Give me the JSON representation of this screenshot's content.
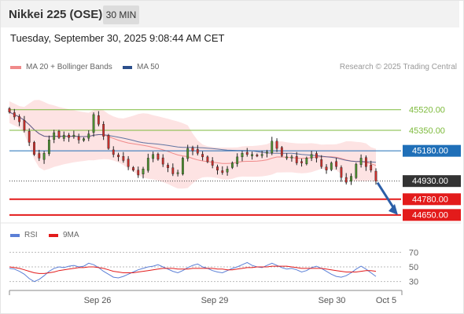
{
  "header": {
    "title": "Nikkei 225 (OSE)",
    "timeframe": "30 MIN"
  },
  "timestamp": "Tuesday, September 30, 2025 9:08:44 AM CET",
  "legend": {
    "ma_bb": {
      "label": "MA 20 + Bollinger Bands",
      "color": "#f08a8a"
    },
    "ma50": {
      "label": "MA 50",
      "color": "#2c4f8c"
    }
  },
  "credit": "Research © 2025 Trading Central",
  "rsi_legend": {
    "rsi": {
      "label": "RSI",
      "color": "#5b7fd6"
    },
    "ma": {
      "label": "9MA",
      "color": "#e31b1b"
    }
  },
  "chart_data": [
    {
      "type": "candlestick",
      "ylim": [
        44610,
        45700
      ],
      "price_levels": [
        {
          "label": "45520.00",
          "value": 45520,
          "kind": "resistance",
          "color": "#7dba3c"
        },
        {
          "label": "45350.00",
          "value": 45350,
          "kind": "resistance",
          "color": "#7dba3c"
        },
        {
          "label": "45180.00",
          "value": 45180,
          "kind": "pivot",
          "color": "#1f6fb8"
        },
        {
          "label": "44930.00",
          "value": 44930,
          "kind": "last",
          "color": "#333333"
        },
        {
          "label": "44780.00",
          "value": 44780,
          "kind": "support",
          "color": "#e31b1b"
        },
        {
          "label": "44650.00",
          "value": 44650,
          "kind": "support",
          "color": "#e31b1b"
        }
      ],
      "x_ticks": [
        "Sep 26",
        "Sep 29",
        "Sep 30",
        "Oct 5"
      ],
      "close_series": [
        45500,
        45460,
        45420,
        45350,
        45250,
        45150,
        45120,
        45160,
        45270,
        45330,
        45290,
        45310,
        45290,
        45310,
        45270,
        45280,
        45320,
        45480,
        45400,
        45300,
        45200,
        45150,
        45130,
        45100,
        45050,
        45020,
        44980,
        45030,
        45120,
        45150,
        45110,
        45070,
        45040,
        44990,
        45000,
        45120,
        45200,
        45180,
        45160,
        45130,
        45090,
        45060,
        45020,
        45000,
        45030,
        45080,
        45130,
        45160,
        45150,
        45150,
        45140,
        45150,
        45170,
        45260,
        45200,
        45140,
        45130,
        45130,
        45080,
        45080,
        45120,
        45150,
        45120,
        45050,
        45020,
        45080,
        45050,
        44960,
        44920,
        44970,
        45070,
        45120,
        45050,
        45020,
        44930
      ],
      "forecast_arrow": {
        "from": 44930,
        "to": 44650
      }
    },
    {
      "type": "line",
      "ylim": [
        20,
        80
      ],
      "y_ticks": [
        70,
        50,
        30
      ],
      "series": [
        {
          "name": "RSI",
          "values": [
            48,
            47,
            44,
            40,
            34,
            30,
            33,
            38,
            44,
            48,
            50,
            49,
            51,
            52,
            50,
            51,
            55,
            53,
            49,
            44,
            40,
            36,
            35,
            37,
            40,
            43,
            46,
            48,
            50,
            51,
            53,
            50,
            47,
            44,
            42,
            45,
            49,
            52,
            54,
            50,
            48,
            45,
            43,
            42,
            45,
            48,
            50,
            53,
            56,
            52,
            50,
            49,
            52,
            55,
            52,
            49,
            47,
            48,
            46,
            43,
            45,
            49,
            51,
            48,
            44,
            40,
            37,
            36,
            38,
            42,
            47,
            51,
            47,
            42,
            37
          ]
        },
        {
          "name": "9MA",
          "values": [
            50,
            49,
            48,
            46,
            44,
            42,
            41,
            41,
            42,
            43,
            45,
            46,
            47,
            48,
            49,
            49,
            50,
            50,
            49,
            48,
            46,
            44,
            43,
            42,
            42,
            42,
            43,
            44,
            45,
            46,
            47,
            48,
            48,
            48,
            47,
            47,
            47,
            48,
            48,
            48,
            48,
            48,
            47,
            47,
            46,
            46,
            47,
            48,
            49,
            49,
            50,
            50,
            50,
            51,
            51,
            51,
            51,
            50,
            49,
            48,
            48,
            48,
            48,
            48,
            47,
            46,
            45,
            44,
            43,
            43,
            43,
            44,
            45,
            45,
            44
          ]
        }
      ],
      "x_ticks": [
        "Sep 26",
        "Sep 29",
        "Sep 30",
        "Oct 5"
      ]
    }
  ]
}
